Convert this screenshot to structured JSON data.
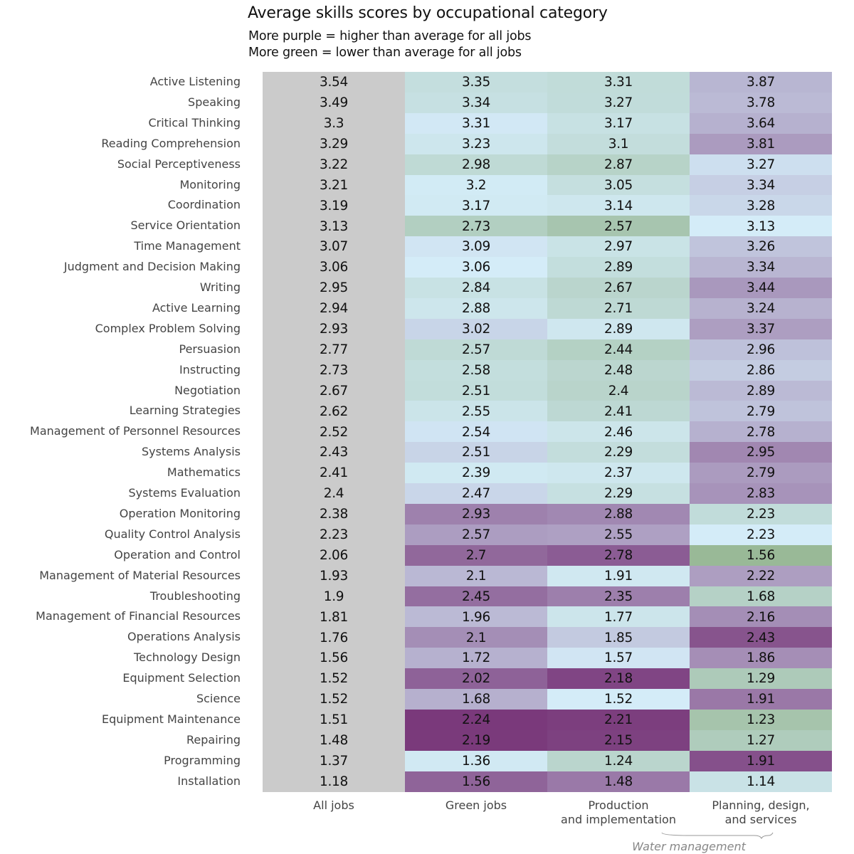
{
  "chart_data": {
    "type": "heatmap",
    "title": "Average skills scores by occupational category",
    "subtitle_lines": [
      "More purple = higher than average for all jobs",
      "More green = lower than average for all jobs"
    ],
    "columns": [
      {
        "label": "All jobs",
        "lines": [
          "All jobs"
        ]
      },
      {
        "label": "Green jobs",
        "lines": [
          "Green jobs"
        ]
      },
      {
        "label": "Production and implementation",
        "lines": [
          "Production",
          "and implementation"
        ]
      },
      {
        "label": "Planning, design, and services",
        "lines": [
          "Planning, design,",
          "and services"
        ]
      }
    ],
    "column_group": {
      "label": "Water management",
      "columns": [
        2,
        3
      ]
    },
    "rows": [
      {
        "skill": "Active Listening",
        "values": [
          "3.54",
          "3.35",
          "3.31",
          "3.87"
        ]
      },
      {
        "skill": "Speaking",
        "values": [
          "3.49",
          "3.34",
          "3.27",
          "3.78"
        ]
      },
      {
        "skill": "Critical Thinking",
        "values": [
          "3.3",
          "3.31",
          "3.17",
          "3.64"
        ]
      },
      {
        "skill": "Reading Comprehension",
        "values": [
          "3.29",
          "3.23",
          "3.1",
          "3.81"
        ]
      },
      {
        "skill": "Social Perceptiveness",
        "values": [
          "3.22",
          "2.98",
          "2.87",
          "3.27"
        ]
      },
      {
        "skill": "Monitoring",
        "values": [
          "3.21",
          "3.2",
          "3.05",
          "3.34"
        ]
      },
      {
        "skill": "Coordination",
        "values": [
          "3.19",
          "3.17",
          "3.14",
          "3.28"
        ]
      },
      {
        "skill": "Service Orientation",
        "values": [
          "3.13",
          "2.73",
          "2.57",
          "3.13"
        ]
      },
      {
        "skill": "Time Management",
        "values": [
          "3.07",
          "3.09",
          "2.97",
          "3.26"
        ]
      },
      {
        "skill": "Judgment and Decision Making",
        "values": [
          "3.06",
          "3.06",
          "2.89",
          "3.34"
        ]
      },
      {
        "skill": "Writing",
        "values": [
          "2.95",
          "2.84",
          "2.67",
          "3.44"
        ]
      },
      {
        "skill": "Active Learning",
        "values": [
          "2.94",
          "2.88",
          "2.71",
          "3.24"
        ]
      },
      {
        "skill": "Complex Problem Solving",
        "values": [
          "2.93",
          "3.02",
          "2.89",
          "3.37"
        ]
      },
      {
        "skill": "Persuasion",
        "values": [
          "2.77",
          "2.57",
          "2.44",
          "2.96"
        ]
      },
      {
        "skill": "Instructing",
        "values": [
          "2.73",
          "2.58",
          "2.48",
          "2.86"
        ]
      },
      {
        "skill": "Negotiation",
        "values": [
          "2.67",
          "2.51",
          "2.4",
          "2.89"
        ]
      },
      {
        "skill": "Learning Strategies",
        "values": [
          "2.62",
          "2.55",
          "2.41",
          "2.79"
        ]
      },
      {
        "skill": "Management of Personnel Resources",
        "values": [
          "2.52",
          "2.54",
          "2.46",
          "2.78"
        ]
      },
      {
        "skill": "Systems Analysis",
        "values": [
          "2.43",
          "2.51",
          "2.29",
          "2.95"
        ]
      },
      {
        "skill": "Mathematics",
        "values": [
          "2.41",
          "2.39",
          "2.37",
          "2.79"
        ]
      },
      {
        "skill": "Systems Evaluation",
        "values": [
          "2.4",
          "2.47",
          "2.29",
          "2.83"
        ]
      },
      {
        "skill": "Operation Monitoring",
        "values": [
          "2.38",
          "2.93",
          "2.88",
          "2.23"
        ]
      },
      {
        "skill": "Quality Control Analysis",
        "values": [
          "2.23",
          "2.57",
          "2.55",
          "2.23"
        ]
      },
      {
        "skill": "Operation and Control",
        "values": [
          "2.06",
          "2.7",
          "2.78",
          "1.56"
        ]
      },
      {
        "skill": "Management of Material Resources",
        "values": [
          "1.93",
          "2.1",
          "1.91",
          "2.22"
        ]
      },
      {
        "skill": "Troubleshooting",
        "values": [
          "1.9",
          "2.45",
          "2.35",
          "1.68"
        ]
      },
      {
        "skill": "Management of Financial Resources",
        "values": [
          "1.81",
          "1.96",
          "1.77",
          "2.16"
        ]
      },
      {
        "skill": "Operations Analysis",
        "values": [
          "1.76",
          "2.1",
          "1.85",
          "2.43"
        ]
      },
      {
        "skill": "Technology Design",
        "values": [
          "1.56",
          "1.72",
          "1.57",
          "1.86"
        ]
      },
      {
        "skill": "Equipment Selection",
        "values": [
          "1.52",
          "2.02",
          "2.18",
          "1.29"
        ]
      },
      {
        "skill": "Science",
        "values": [
          "1.52",
          "1.68",
          "1.52",
          "1.91"
        ]
      },
      {
        "skill": "Equipment Maintenance",
        "values": [
          "1.51",
          "2.24",
          "2.21",
          "1.23"
        ]
      },
      {
        "skill": "Repairing",
        "values": [
          "1.48",
          "2.19",
          "2.15",
          "1.27"
        ]
      },
      {
        "skill": "Programming",
        "values": [
          "1.37",
          "1.36",
          "1.24",
          "1.91"
        ]
      },
      {
        "skill": "Installation",
        "values": [
          "1.18",
          "1.56",
          "1.48",
          "1.14"
        ]
      }
    ],
    "color_scale": {
      "baseline_column": "All jobs",
      "baseline_color": "#cbcbcb",
      "low_color": "#7a9e65",
      "mid_color": "#d4ecf8",
      "high_color": "#6c1e68"
    }
  }
}
